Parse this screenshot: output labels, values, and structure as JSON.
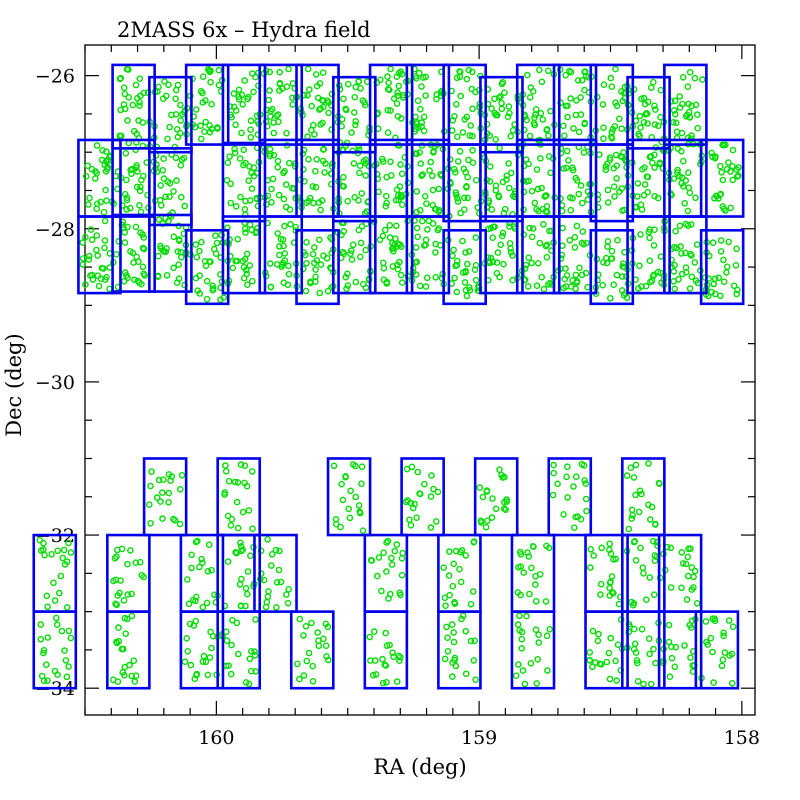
{
  "chart_data": {
    "type": "scatter",
    "title": "2MASS 6x – Hydra field",
    "xlabel": "RA (deg)",
    "ylabel": "Dec (deg)",
    "xlim": [
      160.5,
      157.95
    ],
    "ylim": [
      -34.35,
      -25.6
    ],
    "x_reversed": true,
    "x_ticks": [
      {
        "value": 160,
        "label": "160"
      },
      {
        "value": 159,
        "label": "159"
      },
      {
        "value": 158,
        "label": "158"
      }
    ],
    "y_ticks": [
      {
        "value": -26,
        "label": "−26"
      },
      {
        "value": -28,
        "label": "−28"
      },
      {
        "value": -30,
        "label": "−30"
      },
      {
        "value": -32,
        "label": "−32"
      },
      {
        "value": -34,
        "label": "−34"
      }
    ],
    "colors": {
      "fields": "#0000ee",
      "sources": "#00dd00"
    },
    "field_columns": [
      {
        "ra_min": 160.525,
        "ra_max": 160.365,
        "dec_ranges": [
          [
            -27.84,
            -26.84
          ],
          [
            -28.84,
            -27.84
          ]
        ]
      },
      {
        "ra_min": 160.395,
        "ra_max": 160.235,
        "dec_ranges": [
          [
            -26.95,
            -25.86
          ],
          [
            -27.84,
            -26.84
          ],
          [
            -28.82,
            -27.82
          ]
        ]
      },
      {
        "ra_min": 160.255,
        "ra_max": 160.095,
        "dec_ranges": [
          [
            -27.0,
            -26.02
          ],
          [
            -27.95,
            -26.95
          ],
          [
            -28.82,
            -27.82
          ]
        ]
      },
      {
        "ra_min": 160.115,
        "ra_max": 159.955,
        "dec_ranges": [
          [
            -26.9,
            -25.86
          ],
          [
            -28.98,
            -28.02
          ]
        ]
      },
      {
        "ra_min": 159.975,
        "ra_max": 159.815,
        "dec_ranges": [
          [
            -26.9,
            -25.86
          ],
          [
            -27.9,
            -26.88
          ],
          [
            -28.84,
            -27.84
          ]
        ]
      },
      {
        "ra_min": 159.835,
        "ra_max": 159.675,
        "dec_ranges": [
          [
            -26.9,
            -25.86
          ],
          [
            -27.84,
            -26.84
          ],
          [
            -28.84,
            -27.84
          ]
        ]
      },
      {
        "ra_min": 159.695,
        "ra_max": 159.535,
        "dec_ranges": [
          [
            -26.9,
            -25.86
          ],
          [
            -27.84,
            -26.84
          ],
          [
            -28.98,
            -28.02
          ]
        ]
      },
      {
        "ra_min": 159.555,
        "ra_max": 159.395,
        "dec_ranges": [
          [
            -27.0,
            -26.02
          ],
          [
            -27.9,
            -26.9
          ],
          [
            -28.84,
            -27.84
          ]
        ]
      },
      {
        "ra_min": 159.415,
        "ra_max": 159.255,
        "dec_ranges": [
          [
            -26.9,
            -25.86
          ],
          [
            -27.84,
            -26.84
          ],
          [
            -28.84,
            -27.84
          ]
        ]
      },
      {
        "ra_min": 159.275,
        "ra_max": 159.115,
        "dec_ranges": [
          [
            -26.9,
            -25.86
          ],
          [
            -27.84,
            -26.84
          ],
          [
            -28.84,
            -27.84
          ]
        ]
      },
      {
        "ra_min": 159.135,
        "ra_max": 158.975,
        "dec_ranges": [
          [
            -26.9,
            -25.86
          ],
          [
            -27.9,
            -26.9
          ],
          [
            -28.98,
            -28.02
          ]
        ]
      },
      {
        "ra_min": 158.995,
        "ra_max": 158.835,
        "dec_ranges": [
          [
            -27.0,
            -26.02
          ],
          [
            -27.9,
            -26.9
          ],
          [
            -28.84,
            -27.84
          ]
        ]
      },
      {
        "ra_min": 158.855,
        "ra_max": 158.695,
        "dec_ranges": [
          [
            -26.9,
            -25.86
          ],
          [
            -27.84,
            -26.84
          ],
          [
            -28.84,
            -27.84
          ]
        ]
      },
      {
        "ra_min": 158.715,
        "ra_max": 158.555,
        "dec_ranges": [
          [
            -26.9,
            -25.86
          ],
          [
            -27.84,
            -26.84
          ],
          [
            -28.84,
            -27.84
          ]
        ]
      },
      {
        "ra_min": 158.575,
        "ra_max": 158.415,
        "dec_ranges": [
          [
            -26.9,
            -25.86
          ],
          [
            -27.9,
            -26.9
          ],
          [
            -28.98,
            -28.02
          ]
        ]
      },
      {
        "ra_min": 158.435,
        "ra_max": 158.275,
        "dec_ranges": [
          [
            -26.95,
            -26.02
          ],
          [
            -27.84,
            -26.84
          ],
          [
            -28.84,
            -27.84
          ]
        ]
      },
      {
        "ra_min": 158.295,
        "ra_max": 158.135,
        "dec_ranges": [
          [
            -26.9,
            -25.86
          ],
          [
            -27.84,
            -26.84
          ],
          [
            -28.84,
            -27.84
          ]
        ]
      },
      {
        "ra_min": 158.155,
        "ra_max": 157.995,
        "dec_ranges": [
          [
            -27.84,
            -26.84
          ],
          [
            -28.98,
            -28.02
          ]
        ]
      },
      {
        "ra_min": 160.695,
        "ra_max": 160.535,
        "dec_ranges": [
          [
            -33.0,
            -32.0
          ],
          [
            -34.0,
            -33.0
          ]
        ]
      },
      {
        "ra_min": 160.415,
        "ra_max": 160.255,
        "dec_ranges": [
          [
            -33.0,
            -32.0
          ],
          [
            -34.0,
            -33.0
          ]
        ]
      },
      {
        "ra_min": 160.275,
        "ra_max": 160.115,
        "dec_ranges": [
          [
            -32.0,
            -31.0
          ]
        ]
      },
      {
        "ra_min": 160.135,
        "ra_max": 159.975,
        "dec_ranges": [
          [
            -33.0,
            -32.0
          ],
          [
            -34.0,
            -33.0
          ]
        ]
      },
      {
        "ra_min": 159.995,
        "ra_max": 159.835,
        "dec_ranges": [
          [
            -32.0,
            -31.0
          ],
          [
            -33.0,
            -32.0
          ],
          [
            -34.0,
            -33.0
          ]
        ]
      },
      {
        "ra_min": 159.855,
        "ra_max": 159.695,
        "dec_ranges": [
          [
            -33.0,
            -32.0
          ]
        ]
      },
      {
        "ra_min": 159.715,
        "ra_max": 159.555,
        "dec_ranges": [
          [
            -34.0,
            -33.0
          ]
        ]
      },
      {
        "ra_min": 159.575,
        "ra_max": 159.415,
        "dec_ranges": [
          [
            -32.0,
            -31.0
          ]
        ]
      },
      {
        "ra_min": 159.435,
        "ra_max": 159.275,
        "dec_ranges": [
          [
            -33.0,
            -32.0
          ],
          [
            -34.0,
            -33.0
          ]
        ]
      },
      {
        "ra_min": 159.295,
        "ra_max": 159.135,
        "dec_ranges": [
          [
            -32.0,
            -31.0
          ]
        ]
      },
      {
        "ra_min": 159.155,
        "ra_max": 158.995,
        "dec_ranges": [
          [
            -33.0,
            -32.0
          ],
          [
            -34.0,
            -33.0
          ]
        ]
      },
      {
        "ra_min": 159.015,
        "ra_max": 158.855,
        "dec_ranges": [
          [
            -32.0,
            -31.0
          ]
        ]
      },
      {
        "ra_min": 158.875,
        "ra_max": 158.715,
        "dec_ranges": [
          [
            -33.0,
            -32.0
          ],
          [
            -34.0,
            -33.0
          ]
        ]
      },
      {
        "ra_min": 158.735,
        "ra_max": 158.575,
        "dec_ranges": [
          [
            -32.0,
            -31.0
          ]
        ]
      },
      {
        "ra_min": 158.595,
        "ra_max": 158.435,
        "dec_ranges": [
          [
            -33.0,
            -32.0
          ],
          [
            -34.0,
            -33.0
          ]
        ]
      },
      {
        "ra_min": 158.455,
        "ra_max": 158.295,
        "dec_ranges": [
          [
            -32.0,
            -31.0
          ],
          [
            -33.0,
            -32.0
          ],
          [
            -34.0,
            -33.0
          ]
        ]
      },
      {
        "ra_min": 158.315,
        "ra_max": 158.155,
        "dec_ranges": [
          [
            -33.0,
            -32.0
          ],
          [
            -34.0,
            -33.0
          ]
        ]
      },
      {
        "ra_min": 158.175,
        "ra_max": 158.015,
        "dec_ranges": [
          [
            -34.0,
            -33.0
          ]
        ]
      }
    ]
  }
}
